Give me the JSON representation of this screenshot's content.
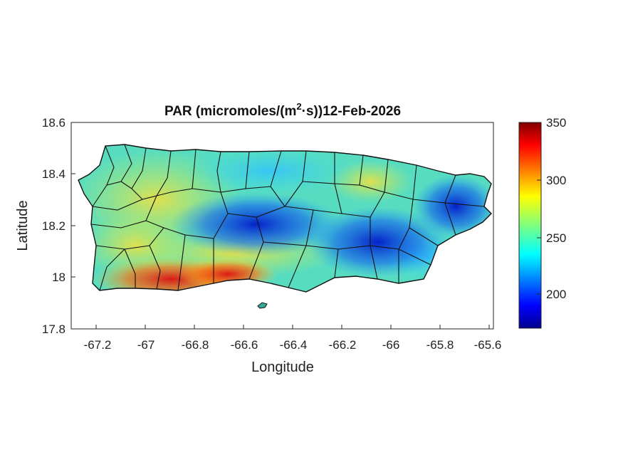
{
  "figure": {
    "title_main": "PAR (micromoles/(m",
    "title_sup": "2",
    "title_rest": "·s))12-Feb-2026"
  },
  "axes": {
    "xlabel": "Longitude",
    "ylabel": "Latitude",
    "xticks": [
      "-67.2",
      "-67",
      "-66.8",
      "-66.6",
      "-66.4",
      "-66.2",
      "-66",
      "-65.8",
      "-65.6"
    ],
    "yticks": [
      "18.6",
      "18.4",
      "18.2",
      "18",
      "17.8"
    ]
  },
  "colorbar": {
    "ticks": [
      "350",
      "300",
      "250",
      "200"
    ],
    "range": [
      172,
      350
    ],
    "colormap": "jet"
  },
  "chart_data": {
    "type": "heatmap",
    "map": "Puerto Rico",
    "xlim": [
      -67.3,
      -65.58
    ],
    "ylim": [
      17.8,
      18.6
    ],
    "zones": [
      {
        "lon": -66.55,
        "lat": 18.18,
        "value": 180
      },
      {
        "lon": -66.05,
        "lat": 18.12,
        "value": 185
      },
      {
        "lon": -65.8,
        "lat": 18.3,
        "value": 195
      },
      {
        "lon": -66.9,
        "lat": 17.97,
        "value": 325
      },
      {
        "lon": -66.7,
        "lat": 17.99,
        "value": 320
      },
      {
        "lon": -67.15,
        "lat": 18.25,
        "value": 275
      },
      {
        "lon": -66.2,
        "lat": 18.4,
        "value": 265
      }
    ]
  }
}
